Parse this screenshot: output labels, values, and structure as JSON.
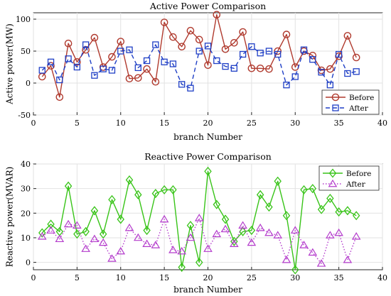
{
  "chart_data": [
    {
      "type": "line",
      "title": "Active Power Comparison",
      "xlabel": "branch Number",
      "ylabel": "Active power(MW)",
      "xlim": [
        0,
        40
      ],
      "ylim": [
        -50,
        110
      ],
      "xticks": [
        0,
        5,
        10,
        15,
        20,
        25,
        30,
        35,
        40
      ],
      "yticks": [
        -50,
        0,
        50,
        100
      ],
      "grid": true,
      "legend_position": "bottom-right",
      "x": [
        1,
        2,
        3,
        4,
        5,
        6,
        7,
        8,
        9,
        10,
        11,
        12,
        13,
        14,
        15,
        16,
        17,
        18,
        19,
        20,
        21,
        22,
        23,
        24,
        25,
        26,
        27,
        28,
        29,
        30,
        31,
        32,
        33,
        34,
        35,
        36,
        37
      ],
      "series": [
        {
          "name": "Before",
          "color": "#b03a2e",
          "marker": "circle",
          "line": "solid",
          "values": [
            10,
            27,
            -22,
            62,
            33,
            52,
            71,
            25,
            41,
            65,
            7,
            8,
            22,
            2,
            95,
            72,
            57,
            82,
            68,
            28,
            107,
            53,
            63,
            80,
            23,
            23,
            22,
            50,
            76,
            25,
            50,
            43,
            20,
            22,
            42,
            74,
            40
          ]
        },
        {
          "name": "After",
          "color": "#1f3fc6",
          "marker": "square",
          "line": "dashed",
          "values": [
            20,
            33,
            5,
            38,
            25,
            60,
            12,
            22,
            20,
            50,
            52,
            24,
            35,
            60,
            33,
            30,
            -2,
            -8,
            50,
            58,
            35,
            26,
            23,
            45,
            57,
            47,
            50,
            45,
            -3,
            10,
            52,
            37,
            17,
            -3,
            45,
            15,
            18
          ]
        }
      ]
    },
    {
      "type": "line",
      "title": "Reactive Power Comparison",
      "xlabel": "branch Number",
      "ylabel": "Reactive power(MVAR)",
      "xlim": [
        0,
        40
      ],
      "ylim": [
        -3,
        40
      ],
      "xticks": [
        0,
        5,
        10,
        15,
        20,
        25,
        30,
        35,
        40
      ],
      "yticks": [
        0,
        10,
        20,
        30,
        40
      ],
      "grid": true,
      "legend_position": "top-right",
      "x": [
        1,
        2,
        3,
        4,
        5,
        6,
        7,
        8,
        9,
        10,
        11,
        12,
        13,
        14,
        15,
        16,
        17,
        18,
        19,
        20,
        21,
        22,
        23,
        24,
        25,
        26,
        27,
        28,
        29,
        30,
        31,
        32,
        33,
        34,
        35,
        36,
        37
      ],
      "series": [
        {
          "name": "Before",
          "color": "#38c418",
          "marker": "diamond",
          "line": "solid",
          "values": [
            12,
            15.5,
            12.5,
            31,
            11.5,
            12.5,
            21,
            11.5,
            25.5,
            17.5,
            33.5,
            27.5,
            13,
            28,
            29.5,
            29.5,
            -2,
            15,
            0,
            37,
            23.5,
            17.5,
            8.5,
            12.5,
            13,
            27.5,
            22.5,
            33,
            19,
            -3,
            29.5,
            30,
            21.5,
            26,
            20.5,
            21,
            19
          ]
        },
        {
          "name": "After",
          "color": "#b43ccc",
          "marker": "triangle",
          "line": "dotted",
          "values": [
            10.5,
            13,
            9.5,
            15.5,
            15,
            5.5,
            9.5,
            8,
            1.5,
            4.5,
            14,
            10,
            7.5,
            7,
            17.5,
            5,
            4.5,
            10,
            18,
            5.5,
            11.5,
            13.5,
            7.5,
            15,
            8,
            14,
            12,
            11,
            1,
            13,
            7,
            4,
            -0.5,
            11,
            12,
            1,
            10.5
          ]
        }
      ]
    }
  ]
}
